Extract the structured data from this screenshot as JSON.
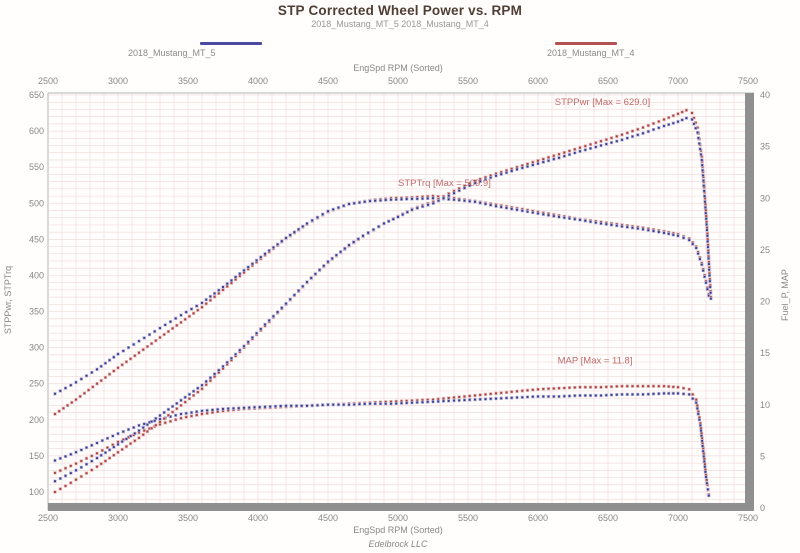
{
  "header": {
    "title": "STP Corrected Wheel Power vs. RPM",
    "subtitle": "2018_Mustang_MT_5  2018_Mustang_MT_4"
  },
  "legend": {
    "items": [
      {
        "label": "2018_Mustang_MT_5",
        "color": "#4a4aa0"
      },
      {
        "label": "2018_Mustang_MT_4",
        "color": "#b35252"
      }
    ]
  },
  "colors": {
    "blue_series": "#39398c",
    "blue_halo": "#b9b9dc",
    "red_series": "#a83e3e",
    "red_halo": "#e2b6b6",
    "grid": "#f2dcdc",
    "frame_light": "#b5b5b5",
    "frame_heavy": "#8f8f8f",
    "annotation": "#c16a6a",
    "tick_text": "#8a8886"
  },
  "chart_data": {
    "type": "scatter",
    "title": "STP Corrected Wheel Power vs. RPM",
    "subtitle": "2018_Mustang_MT_5  2018_Mustang_MT_4",
    "footer": "Edelbrock LLC",
    "x_axis": {
      "label": "EngSpd RPM  (Sorted)",
      "min": 2500,
      "max": 7500,
      "tick_step": 500,
      "shown_top_and_bottom": true
    },
    "y_left": {
      "label": "STPPwr, STPTrq",
      "min": 100,
      "max": 650,
      "tick_step": 50
    },
    "y_right": {
      "label": "Fuel_P, MAP",
      "min": 0,
      "max": 40,
      "tick_step": 5
    },
    "grid": "on",
    "annotations": [
      {
        "text": "STPPwr  [Max = 629.0]",
        "rpm": 6120,
        "value": 636,
        "axis": "left"
      },
      {
        "text": "STPTrq  [Max = 509.9]",
        "rpm": 5000,
        "value": 524,
        "axis": "left"
      },
      {
        "text": "MAP  [Max = 11.8]",
        "rpm": 6140,
        "value": 14.0,
        "axis": "right"
      }
    ],
    "series": [
      {
        "id": "map-red",
        "name": "2018_Mustang_MT_4 MAP",
        "axis": "right",
        "color": "#a83e3e",
        "halo": "#e2b6b6",
        "points": [
          [
            2550,
            3.4
          ],
          [
            2700,
            4.3
          ],
          [
            2850,
            5.3
          ],
          [
            3000,
            6.4
          ],
          [
            3150,
            7.3
          ],
          [
            3300,
            8.1
          ],
          [
            3450,
            8.7
          ],
          [
            3600,
            9.1
          ],
          [
            3750,
            9.4
          ],
          [
            3900,
            9.6
          ],
          [
            4050,
            9.7
          ],
          [
            4200,
            9.8
          ],
          [
            4350,
            9.9
          ],
          [
            4500,
            10.0
          ],
          [
            4650,
            10.1
          ],
          [
            4800,
            10.2
          ],
          [
            4950,
            10.3
          ],
          [
            5100,
            10.4
          ],
          [
            5250,
            10.5
          ],
          [
            5400,
            10.7
          ],
          [
            5550,
            10.9
          ],
          [
            5700,
            11.1
          ],
          [
            5850,
            11.3
          ],
          [
            6000,
            11.5
          ],
          [
            6150,
            11.6
          ],
          [
            6300,
            11.7
          ],
          [
            6450,
            11.7
          ],
          [
            6600,
            11.8
          ],
          [
            6750,
            11.8
          ],
          [
            6900,
            11.8
          ],
          [
            7000,
            11.7
          ],
          [
            7080,
            11.5
          ],
          [
            7130,
            10.5
          ],
          [
            7160,
            8.2
          ],
          [
            7180,
            5.8
          ],
          [
            7200,
            3.2
          ],
          [
            7220,
            1.3
          ]
        ]
      },
      {
        "id": "map-blue",
        "name": "2018_Mustang_MT_5 MAP",
        "axis": "right",
        "color": "#39398c",
        "halo": "#b9b9dc",
        "points": [
          [
            2550,
            4.6
          ],
          [
            2700,
            5.4
          ],
          [
            2850,
            6.3
          ],
          [
            3000,
            7.2
          ],
          [
            3150,
            8.0
          ],
          [
            3300,
            8.6
          ],
          [
            3450,
            9.1
          ],
          [
            3600,
            9.4
          ],
          [
            3750,
            9.6
          ],
          [
            3900,
            9.7
          ],
          [
            4050,
            9.8
          ],
          [
            4200,
            9.9
          ],
          [
            4350,
            9.9
          ],
          [
            4500,
            10.0
          ],
          [
            4650,
            10.0
          ],
          [
            4800,
            10.1
          ],
          [
            4950,
            10.1
          ],
          [
            5100,
            10.2
          ],
          [
            5250,
            10.3
          ],
          [
            5400,
            10.4
          ],
          [
            5550,
            10.5
          ],
          [
            5700,
            10.6
          ],
          [
            5850,
            10.7
          ],
          [
            6000,
            10.8
          ],
          [
            6150,
            10.8
          ],
          [
            6300,
            10.9
          ],
          [
            6450,
            10.9
          ],
          [
            6600,
            11.0
          ],
          [
            6750,
            11.0
          ],
          [
            6900,
            11.1
          ],
          [
            7000,
            11.1
          ],
          [
            7080,
            11.0
          ],
          [
            7130,
            10.2
          ],
          [
            7160,
            8.0
          ],
          [
            7180,
            5.5
          ],
          [
            7200,
            3.0
          ],
          [
            7220,
            1.2
          ]
        ]
      },
      {
        "id": "torque-red",
        "name": "2018_Mustang_MT_4 STPTrq",
        "axis": "left",
        "color": "#a83e3e",
        "halo": "#e2b6b6",
        "points": [
          [
            2550,
            208
          ],
          [
            2700,
            228
          ],
          [
            2850,
            250
          ],
          [
            3000,
            272
          ],
          [
            3150,
            293
          ],
          [
            3300,
            314
          ],
          [
            3450,
            335
          ],
          [
            3600,
            356
          ],
          [
            3750,
            380
          ],
          [
            3900,
            404
          ],
          [
            4050,
            428
          ],
          [
            4200,
            451
          ],
          [
            4350,
            471
          ],
          [
            4500,
            488
          ],
          [
            4650,
            499
          ],
          [
            4800,
            504
          ],
          [
            4950,
            507
          ],
          [
            5100,
            508
          ],
          [
            5250,
            510
          ],
          [
            5400,
            507
          ],
          [
            5550,
            503
          ],
          [
            5700,
            498
          ],
          [
            5850,
            493
          ],
          [
            6000,
            488
          ],
          [
            6150,
            483
          ],
          [
            6300,
            478
          ],
          [
            6450,
            474
          ],
          [
            6600,
            470
          ],
          [
            6750,
            466
          ],
          [
            6900,
            461
          ],
          [
            7000,
            457
          ],
          [
            7080,
            451
          ],
          [
            7130,
            440
          ],
          [
            7170,
            417
          ],
          [
            7200,
            392
          ],
          [
            7220,
            374
          ]
        ]
      },
      {
        "id": "torque-blue",
        "name": "2018_Mustang_MT_5 STPTrq",
        "axis": "left",
        "color": "#39398c",
        "halo": "#b9b9dc",
        "points": [
          [
            2550,
            236
          ],
          [
            2700,
            252
          ],
          [
            2850,
            270
          ],
          [
            3000,
            291
          ],
          [
            3150,
            309
          ],
          [
            3300,
            327
          ],
          [
            3450,
            345
          ],
          [
            3600,
            362
          ],
          [
            3750,
            384
          ],
          [
            3900,
            407
          ],
          [
            4050,
            430
          ],
          [
            4200,
            452
          ],
          [
            4350,
            472
          ],
          [
            4500,
            489
          ],
          [
            4650,
            499
          ],
          [
            4800,
            503
          ],
          [
            4950,
            505
          ],
          [
            5100,
            506
          ],
          [
            5250,
            507
          ],
          [
            5400,
            505
          ],
          [
            5550,
            502
          ],
          [
            5700,
            496
          ],
          [
            5850,
            491
          ],
          [
            6000,
            486
          ],
          [
            6150,
            481
          ],
          [
            6300,
            477
          ],
          [
            6450,
            472
          ],
          [
            6600,
            468
          ],
          [
            6750,
            464
          ],
          [
            6900,
            459
          ],
          [
            7000,
            455
          ],
          [
            7080,
            449
          ],
          [
            7130,
            438
          ],
          [
            7170,
            415
          ],
          [
            7200,
            390
          ],
          [
            7220,
            372
          ]
        ]
      },
      {
        "id": "power-red",
        "name": "2018_Mustang_MT_4 STPPwr",
        "axis": "left",
        "color": "#a83e3e",
        "halo": "#e2b6b6",
        "points": [
          [
            2550,
            100
          ],
          [
            2700,
            117
          ],
          [
            2850,
            135
          ],
          [
            3000,
            155
          ],
          [
            3150,
            175
          ],
          [
            3300,
            197
          ],
          [
            3450,
            220
          ],
          [
            3600,
            243
          ],
          [
            3750,
            271
          ],
          [
            3900,
            300
          ],
          [
            4050,
            330
          ],
          [
            4200,
            360
          ],
          [
            4350,
            390
          ],
          [
            4500,
            418
          ],
          [
            4650,
            441
          ],
          [
            4750,
            454
          ],
          [
            4900,
            472
          ],
          [
            5000,
            482
          ],
          [
            5100,
            492
          ],
          [
            5252,
            502
          ],
          [
            5400,
            517
          ],
          [
            5550,
            531
          ],
          [
            5700,
            541
          ],
          [
            5850,
            550
          ],
          [
            6000,
            559
          ],
          [
            6150,
            568
          ],
          [
            6300,
            577
          ],
          [
            6450,
            586
          ],
          [
            6600,
            595
          ],
          [
            6750,
            605
          ],
          [
            6900,
            616
          ],
          [
            7000,
            624
          ],
          [
            7060,
            629
          ],
          [
            7100,
            625
          ],
          [
            7140,
            605
          ],
          [
            7170,
            565
          ],
          [
            7190,
            515
          ],
          [
            7210,
            458
          ],
          [
            7225,
            403
          ],
          [
            7235,
            370
          ]
        ]
      },
      {
        "id": "power-blue",
        "name": "2018_Mustang_MT_5 STPPwr",
        "axis": "left",
        "color": "#39398c",
        "halo": "#b9b9dc",
        "points": [
          [
            2550,
            115
          ],
          [
            2700,
            130
          ],
          [
            2850,
            147
          ],
          [
            3000,
            166
          ],
          [
            3150,
            185
          ],
          [
            3300,
            206
          ],
          [
            3450,
            227
          ],
          [
            3600,
            248
          ],
          [
            3750,
            274
          ],
          [
            3900,
            302
          ],
          [
            4050,
            332
          ],
          [
            4200,
            361
          ],
          [
            4350,
            391
          ],
          [
            4500,
            419
          ],
          [
            4650,
            442
          ],
          [
            4750,
            455
          ],
          [
            4900,
            472
          ],
          [
            5000,
            481
          ],
          [
            5100,
            491
          ],
          [
            5252,
            500
          ],
          [
            5400,
            514
          ],
          [
            5550,
            528
          ],
          [
            5700,
            538
          ],
          [
            5850,
            547
          ],
          [
            6000,
            555
          ],
          [
            6150,
            563
          ],
          [
            6300,
            572
          ],
          [
            6450,
            580
          ],
          [
            6600,
            588
          ],
          [
            6750,
            597
          ],
          [
            6900,
            607
          ],
          [
            7000,
            613
          ],
          [
            7060,
            618
          ],
          [
            7100,
            616
          ],
          [
            7140,
            598
          ],
          [
            7170,
            560
          ],
          [
            7190,
            510
          ],
          [
            7210,
            455
          ],
          [
            7225,
            400
          ],
          [
            7235,
            368
          ]
        ]
      }
    ]
  }
}
